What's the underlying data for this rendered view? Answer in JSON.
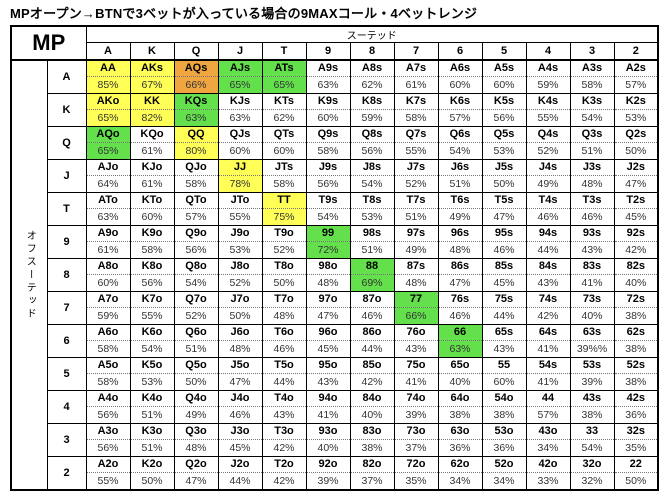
{
  "title": "MPオープン→BTNで3ベットが入っている場合の9MAXコール・4ベットレンジ",
  "corner_label": "MP",
  "suited_label": "スーテッド",
  "offsuit_label": "オフスーテッド",
  "colors": {
    "y": "#ffff57",
    "o": "#f0a640",
    "g": "#63e04b",
    "w": "#ffffff"
  },
  "chart_data": {
    "type": "heatmap",
    "title": "MPオープン→BTNで3ベットが入っている場合の9MAXコール・4ベットレンジ",
    "columns": [
      "A",
      "K",
      "Q",
      "J",
      "T",
      "9",
      "8",
      "7",
      "6",
      "5",
      "4",
      "3",
      "2"
    ],
    "rows": [
      {
        "label": "A",
        "cells": [
          [
            "AA",
            "85%",
            "y"
          ],
          [
            "AKs",
            "67%",
            "y"
          ],
          [
            "AQs",
            "66%",
            "o"
          ],
          [
            "AJs",
            "65%",
            "g"
          ],
          [
            "ATs",
            "65%",
            "g"
          ],
          [
            "A9s",
            "63%",
            "w"
          ],
          [
            "A8s",
            "62%",
            "w"
          ],
          [
            "A7s",
            "61%",
            "w"
          ],
          [
            "A6s",
            "60%",
            "w"
          ],
          [
            "A5s",
            "60%",
            "w"
          ],
          [
            "A4s",
            "59%",
            "w"
          ],
          [
            "A3s",
            "58%",
            "w"
          ],
          [
            "A2s",
            "57%",
            "w"
          ]
        ]
      },
      {
        "label": "K",
        "cells": [
          [
            "AKo",
            "65%",
            "y"
          ],
          [
            "KK",
            "82%",
            "y"
          ],
          [
            "KQs",
            "63%",
            "g"
          ],
          [
            "KJs",
            "63%",
            "w"
          ],
          [
            "KTs",
            "62%",
            "w"
          ],
          [
            "K9s",
            "60%",
            "w"
          ],
          [
            "K8s",
            "59%",
            "w"
          ],
          [
            "K7s",
            "58%",
            "w"
          ],
          [
            "K6s",
            "57%",
            "w"
          ],
          [
            "K5s",
            "56%",
            "w"
          ],
          [
            "K4s",
            "55%",
            "w"
          ],
          [
            "K3s",
            "54%",
            "w"
          ],
          [
            "K2s",
            "53%",
            "w"
          ]
        ]
      },
      {
        "label": "Q",
        "cells": [
          [
            "AQo",
            "65%",
            "g"
          ],
          [
            "KQo",
            "61%",
            "w"
          ],
          [
            "QQ",
            "80%",
            "y"
          ],
          [
            "QJs",
            "60%",
            "w"
          ],
          [
            "QTs",
            "60%",
            "w"
          ],
          [
            "Q9s",
            "58%",
            "w"
          ],
          [
            "Q8s",
            "56%",
            "w"
          ],
          [
            "Q7s",
            "55%",
            "w"
          ],
          [
            "Q6s",
            "54%",
            "w"
          ],
          [
            "Q5s",
            "53%",
            "w"
          ],
          [
            "Q4s",
            "52%",
            "w"
          ],
          [
            "Q3s",
            "51%",
            "w"
          ],
          [
            "Q2s",
            "50%",
            "w"
          ]
        ]
      },
      {
        "label": "J",
        "cells": [
          [
            "AJo",
            "64%",
            "w"
          ],
          [
            "KJo",
            "61%",
            "w"
          ],
          [
            "QJo",
            "58%",
            "w"
          ],
          [
            "JJ",
            "78%",
            "y"
          ],
          [
            "JTs",
            "58%",
            "w"
          ],
          [
            "J9s",
            "56%",
            "w"
          ],
          [
            "J8s",
            "54%",
            "w"
          ],
          [
            "J7s",
            "52%",
            "w"
          ],
          [
            "J6s",
            "51%",
            "w"
          ],
          [
            "J5s",
            "50%",
            "w"
          ],
          [
            "J4s",
            "49%",
            "w"
          ],
          [
            "J3s",
            "48%",
            "w"
          ],
          [
            "J2s",
            "47%",
            "w"
          ]
        ]
      },
      {
        "label": "T",
        "cells": [
          [
            "ATo",
            "63%",
            "w"
          ],
          [
            "KTo",
            "60%",
            "w"
          ],
          [
            "QTo",
            "57%",
            "w"
          ],
          [
            "JTo",
            "55%",
            "w"
          ],
          [
            "TT",
            "75%",
            "y"
          ],
          [
            "T9s",
            "54%",
            "w"
          ],
          [
            "T8s",
            "53%",
            "w"
          ],
          [
            "T7s",
            "51%",
            "w"
          ],
          [
            "T6s",
            "49%",
            "w"
          ],
          [
            "T5s",
            "47%",
            "w"
          ],
          [
            "T4s",
            "46%",
            "w"
          ],
          [
            "T3s",
            "46%",
            "w"
          ],
          [
            "T2s",
            "45%",
            "w"
          ]
        ]
      },
      {
        "label": "9",
        "cells": [
          [
            "A9o",
            "61%",
            "w"
          ],
          [
            "K9o",
            "58%",
            "w"
          ],
          [
            "Q9o",
            "56%",
            "w"
          ],
          [
            "J9o",
            "53%",
            "w"
          ],
          [
            "T9o",
            "52%",
            "w"
          ],
          [
            "99",
            "72%",
            "g"
          ],
          [
            "98s",
            "51%",
            "w"
          ],
          [
            "97s",
            "49%",
            "w"
          ],
          [
            "96s",
            "48%",
            "w"
          ],
          [
            "95s",
            "46%",
            "w"
          ],
          [
            "94s",
            "44%",
            "w"
          ],
          [
            "93s",
            "43%",
            "w"
          ],
          [
            "92s",
            "42%",
            "w"
          ]
        ]
      },
      {
        "label": "8",
        "cells": [
          [
            "A8o",
            "60%",
            "w"
          ],
          [
            "K8o",
            "56%",
            "w"
          ],
          [
            "Q8o",
            "54%",
            "w"
          ],
          [
            "J8o",
            "52%",
            "w"
          ],
          [
            "T8o",
            "50%",
            "w"
          ],
          [
            "98o",
            "48%",
            "w"
          ],
          [
            "88",
            "69%",
            "g"
          ],
          [
            "87s",
            "48%",
            "w"
          ],
          [
            "86s",
            "47%",
            "w"
          ],
          [
            "85s",
            "45%",
            "w"
          ],
          [
            "84s",
            "43%",
            "w"
          ],
          [
            "83s",
            "41%",
            "w"
          ],
          [
            "82s",
            "40%",
            "w"
          ]
        ]
      },
      {
        "label": "7",
        "cells": [
          [
            "A7o",
            "59%",
            "w"
          ],
          [
            "K7o",
            "55%",
            "w"
          ],
          [
            "Q7o",
            "52%",
            "w"
          ],
          [
            "J7o",
            "50%",
            "w"
          ],
          [
            "T7o",
            "48%",
            "w"
          ],
          [
            "97o",
            "47%",
            "w"
          ],
          [
            "87o",
            "46%",
            "w"
          ],
          [
            "77",
            "66%",
            "g"
          ],
          [
            "76s",
            "46%",
            "w"
          ],
          [
            "75s",
            "44%",
            "w"
          ],
          [
            "74s",
            "42%",
            "w"
          ],
          [
            "73s",
            "40%",
            "w"
          ],
          [
            "72s",
            "38%",
            "w"
          ]
        ]
      },
      {
        "label": "6",
        "cells": [
          [
            "A6o",
            "58%",
            "w"
          ],
          [
            "K6o",
            "54%",
            "w"
          ],
          [
            "Q6o",
            "51%",
            "w"
          ],
          [
            "J6o",
            "48%",
            "w"
          ],
          [
            "T6o",
            "46%",
            "w"
          ],
          [
            "96o",
            "45%",
            "w"
          ],
          [
            "86o",
            "44%",
            "w"
          ],
          [
            "76o",
            "43%",
            "w"
          ],
          [
            "66",
            "63%",
            "g"
          ],
          [
            "65s",
            "43%",
            "w"
          ],
          [
            "64s",
            "41%",
            "w"
          ],
          [
            "63s",
            "39%%",
            "w"
          ],
          [
            "62s",
            "38%",
            "w"
          ]
        ]
      },
      {
        "label": "5",
        "cells": [
          [
            "A5o",
            "58%",
            "w"
          ],
          [
            "K5o",
            "53%",
            "w"
          ],
          [
            "Q5o",
            "50%",
            "w"
          ],
          [
            "J5o",
            "47%",
            "w"
          ],
          [
            "T5o",
            "44%",
            "w"
          ],
          [
            "95o",
            "43%",
            "w"
          ],
          [
            "85o",
            "42%",
            "w"
          ],
          [
            "75o",
            "41%",
            "w"
          ],
          [
            "65o",
            "40%",
            "w"
          ],
          [
            "55",
            "60%",
            "w"
          ],
          [
            "54s",
            "41%",
            "w"
          ],
          [
            "53s",
            "39%",
            "w"
          ],
          [
            "52s",
            "38%",
            "w"
          ]
        ]
      },
      {
        "label": "4",
        "cells": [
          [
            "A4o",
            "56%",
            "w"
          ],
          [
            "K4o",
            "51%",
            "w"
          ],
          [
            "Q4o",
            "49%",
            "w"
          ],
          [
            "J4o",
            "46%",
            "w"
          ],
          [
            "T4o",
            "43%",
            "w"
          ],
          [
            "94o",
            "41%",
            "w"
          ],
          [
            "84o",
            "40%",
            "w"
          ],
          [
            "74o",
            "39%",
            "w"
          ],
          [
            "64o",
            "38%",
            "w"
          ],
          [
            "54o",
            "38%",
            "w"
          ],
          [
            "44",
            "57%",
            "w"
          ],
          [
            "43s",
            "38%",
            "w"
          ],
          [
            "42s",
            "36%",
            "w"
          ]
        ]
      },
      {
        "label": "3",
        "cells": [
          [
            "A3o",
            "56%",
            "w"
          ],
          [
            "K3o",
            "51%",
            "w"
          ],
          [
            "Q3o",
            "48%",
            "w"
          ],
          [
            "J3o",
            "45%",
            "w"
          ],
          [
            "T3o",
            "42%",
            "w"
          ],
          [
            "93o",
            "40%",
            "w"
          ],
          [
            "83o",
            "38%",
            "w"
          ],
          [
            "73o",
            "37%",
            "w"
          ],
          [
            "63o",
            "36%",
            "w"
          ],
          [
            "53o",
            "36%",
            "w"
          ],
          [
            "43o",
            "34%",
            "w"
          ],
          [
            "33",
            "54%",
            "w"
          ],
          [
            "32s",
            "35%",
            "w"
          ]
        ]
      },
      {
        "label": "2",
        "cells": [
          [
            "A2o",
            "55%",
            "w"
          ],
          [
            "K2o",
            "50%",
            "w"
          ],
          [
            "Q2o",
            "47%",
            "w"
          ],
          [
            "J2o",
            "44%",
            "w"
          ],
          [
            "T2o",
            "42%",
            "w"
          ],
          [
            "92o",
            "39%",
            "w"
          ],
          [
            "82o",
            "37%",
            "w"
          ],
          [
            "72o",
            "35%",
            "w"
          ],
          [
            "62o",
            "34%",
            "w"
          ],
          [
            "52o",
            "34%",
            "w"
          ],
          [
            "42o",
            "33%",
            "w"
          ],
          [
            "32o",
            "32%",
            "w"
          ],
          [
            "22",
            "50%",
            "w"
          ]
        ]
      }
    ]
  }
}
